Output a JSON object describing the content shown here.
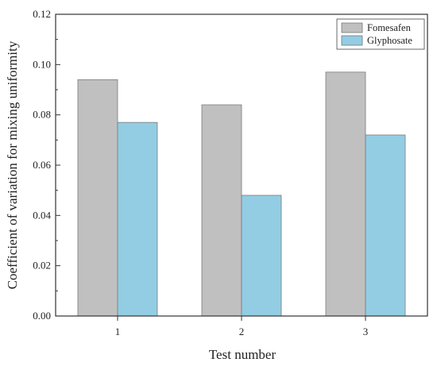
{
  "chart_data": {
    "type": "bar",
    "categories": [
      "1",
      "2",
      "3"
    ],
    "series": [
      {
        "name": "Fomesafen",
        "values": [
          0.094,
          0.084,
          0.097
        ],
        "color": "#c0c0c0"
      },
      {
        "name": "Glyphosate",
        "values": [
          0.077,
          0.048,
          0.072
        ],
        "color": "#93cde3"
      }
    ],
    "xlabel": "Test number",
    "ylabel": "Coefficient of variation for mixing uniformity",
    "ylim": [
      0,
      0.12
    ],
    "yticks": [
      "0.00",
      "0.02",
      "0.04",
      "0.06",
      "0.08",
      "0.10",
      "0.12"
    ],
    "grid": false,
    "legend_position": "top-right"
  }
}
